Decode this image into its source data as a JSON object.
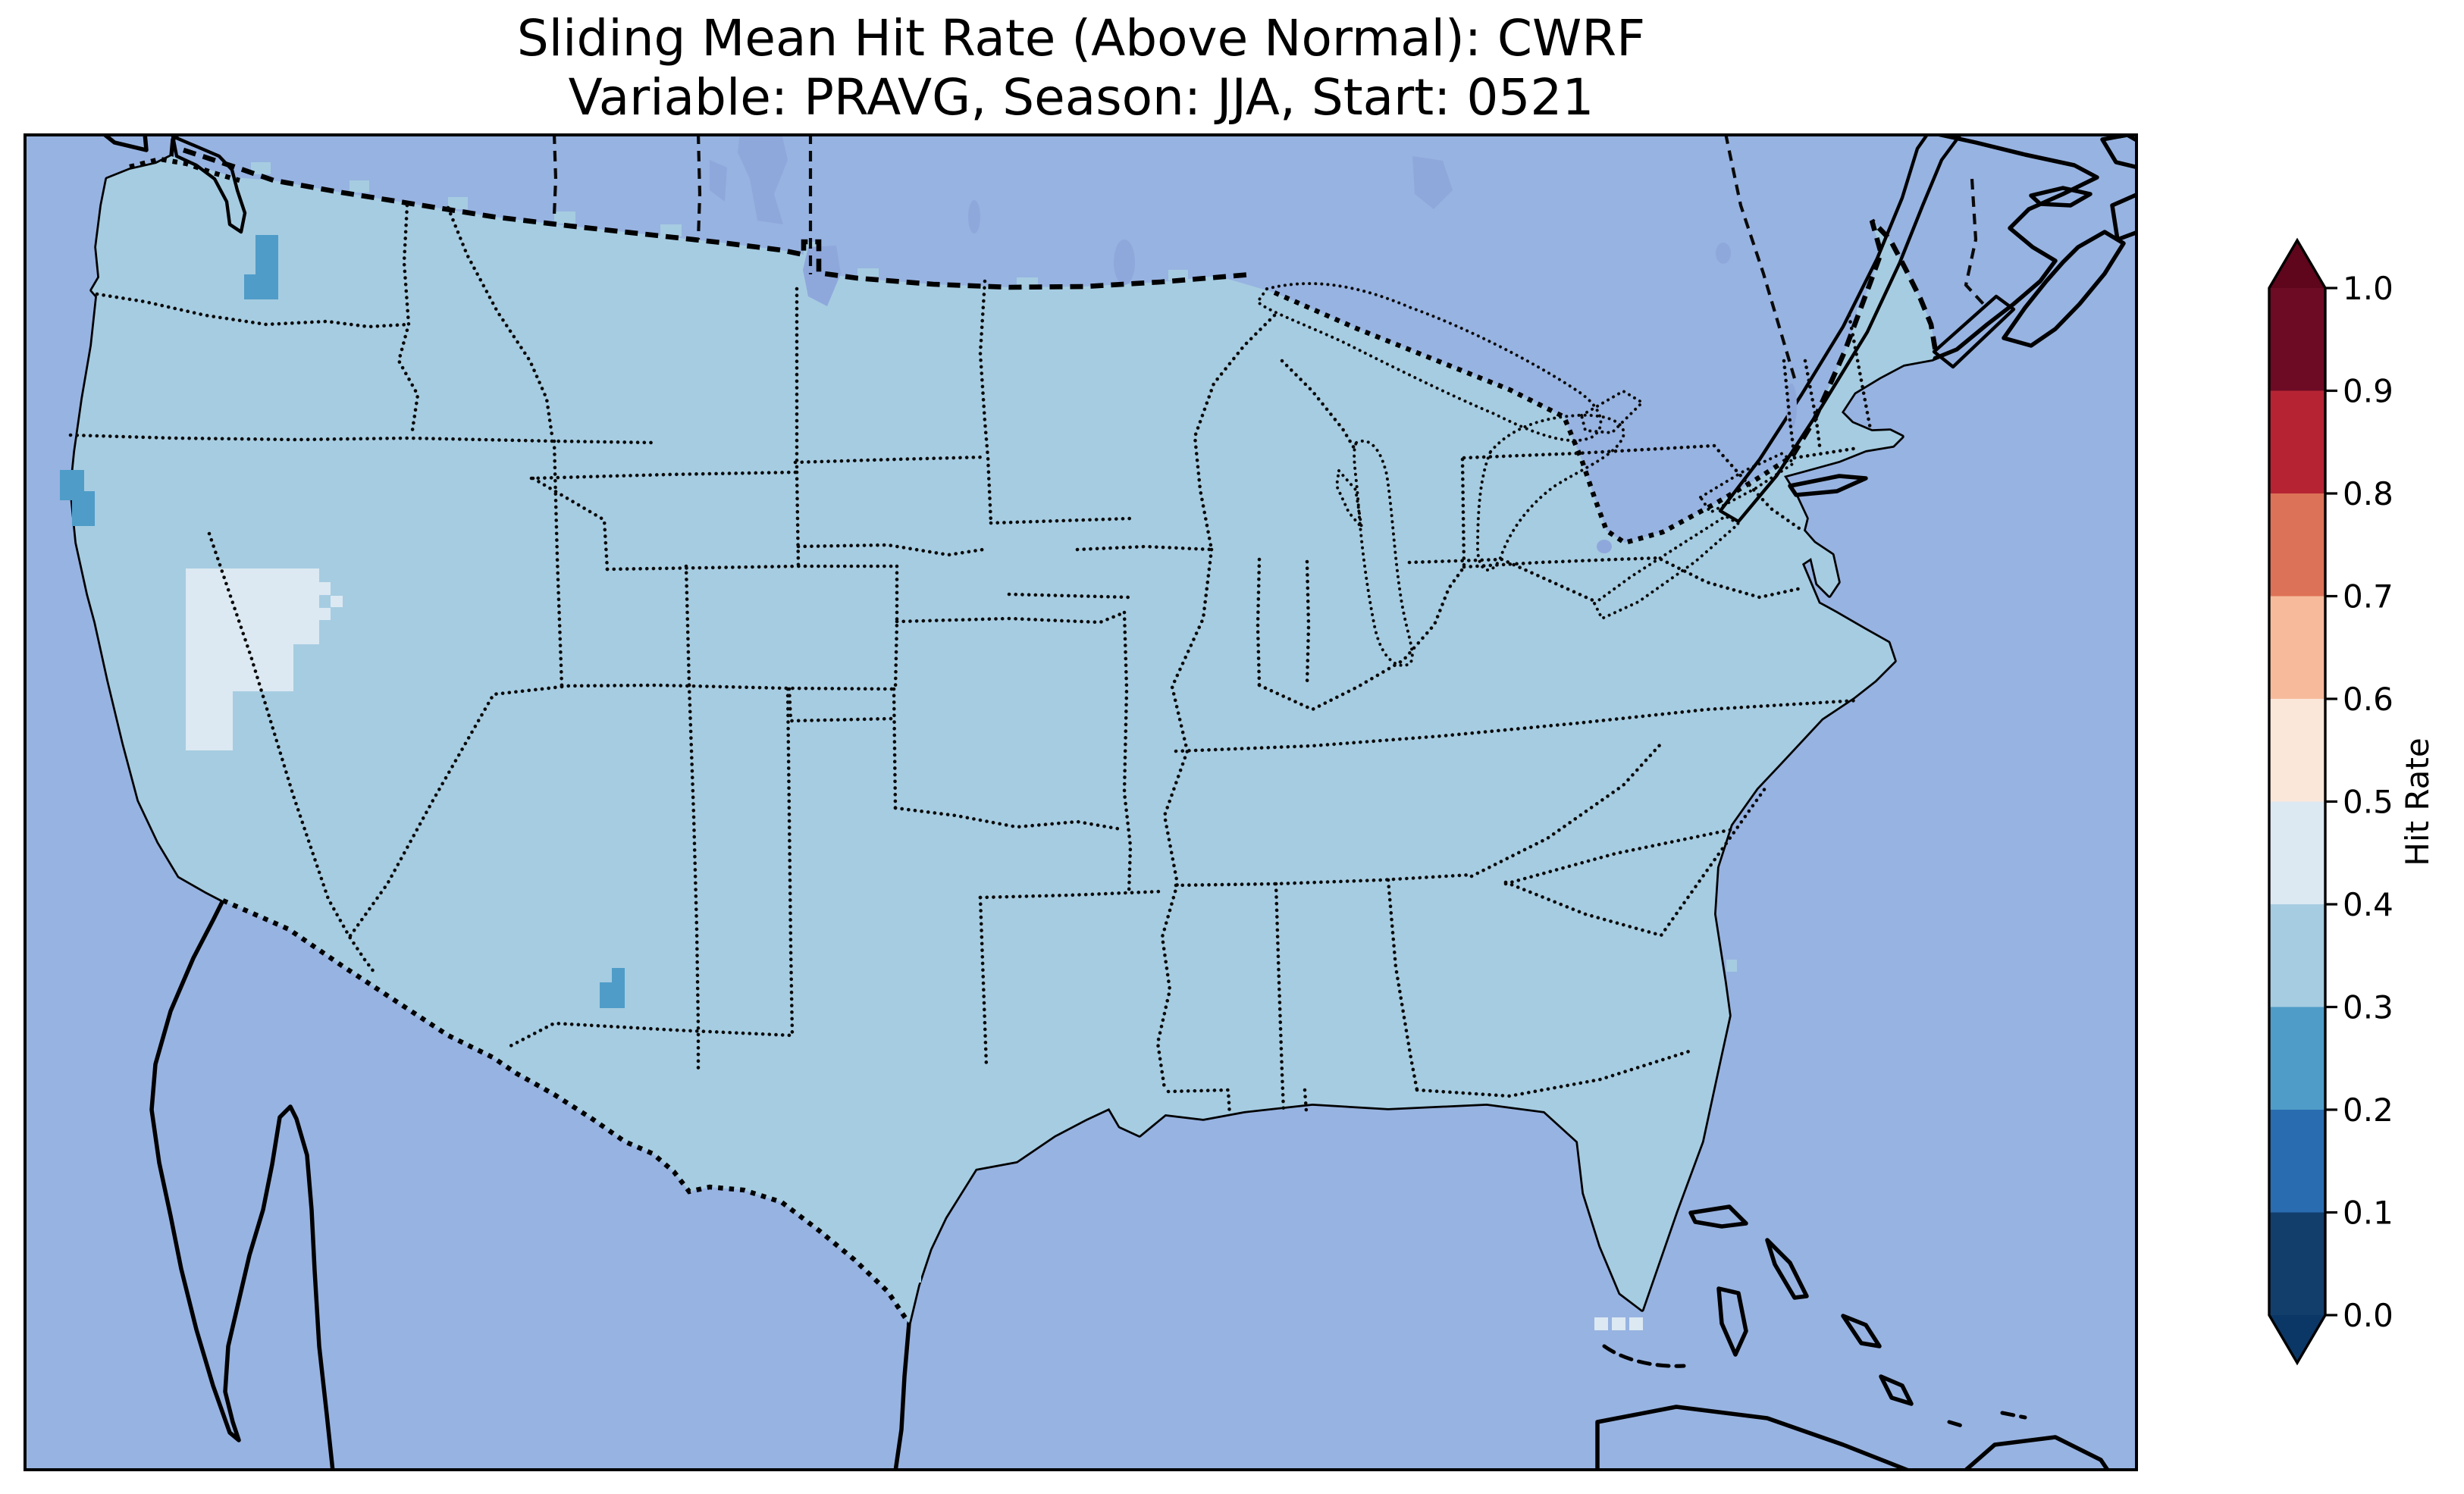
{
  "figure": {
    "background": "#ffffff"
  },
  "title": {
    "line1": "Sliding Mean Hit Rate (Above Normal): CWRF",
    "line2": "Variable: PRAVG, Season: JJA, Start: 0521"
  },
  "colorbar": {
    "label": "Hit Rate",
    "tick_labels": [
      "1.0",
      "0.9",
      "0.8",
      "0.7",
      "0.6",
      "0.5",
      "0.4",
      "0.3",
      "0.2",
      "0.1",
      "0.0"
    ],
    "bins_top_to_bottom": [
      {
        "range": "0.9–1.0",
        "color": "#6d0b24"
      },
      {
        "range": "0.8–0.9",
        "color": "#b62433"
      },
      {
        "range": "0.7–0.8",
        "color": "#dc7257"
      },
      {
        "range": "0.6–0.7",
        "color": "#f7bb9b"
      },
      {
        "range": "0.5–0.6",
        "color": "#fbe7da"
      },
      {
        "range": "0.4–0.5",
        "color": "#dce9f2"
      },
      {
        "range": "0.3–0.4",
        "color": "#a6cce1"
      },
      {
        "range": "0.2–0.3",
        "color": "#4f9cc8"
      },
      {
        "range": "0.1–0.2",
        "color": "#2a6cb0"
      },
      {
        "range": "0.0–0.1",
        "color": "#123e6b"
      }
    ],
    "extend_over_color": "#5f051c",
    "extend_under_color": "#0b3766",
    "outline_color": "#000000"
  },
  "map": {
    "ocean_color": "#97b3e1",
    "foreign_land_color": "#f0eddc",
    "lake_color": "#8fa8dc",
    "us_fill_color": "#a6cce1",
    "us_fill_bin": "0.3–0.4",
    "coastline_color": "#000000"
  },
  "chart_data": {
    "type": "heatmap",
    "title": "Sliding Mean Hit Rate (Above Normal): CWRF",
    "subtitle": "Variable: PRAVG, Season: JJA, Start: 0521",
    "model": "CWRF",
    "variable": "PRAVG",
    "season": "JJA",
    "start_date": "0521",
    "category": "Above Normal",
    "colorbar_label": "Hit Rate",
    "levels": [
      0.0,
      0.1,
      0.2,
      0.3,
      0.4,
      0.5,
      0.6,
      0.7,
      0.8,
      0.9,
      1.0
    ],
    "extend": "both",
    "colormap": "RdBu_r (discrete)",
    "legend_position": "right",
    "region": "Contiguous United States (CONUS)",
    "base_field_value_bin": "0.3–0.4",
    "anomalous_regions": [
      {
        "name": "central-washington",
        "value_bin": "0.2–0.3",
        "color": "#4f9cc8",
        "rects": [
          [
            306,
            134,
            30,
            52
          ],
          [
            291,
            186,
            45,
            33
          ]
        ]
      },
      {
        "name": "northern-california-coast",
        "value_bin": "0.2–0.3",
        "color": "#4f9cc8",
        "rects": [
          [
            48,
            444,
            32,
            40
          ],
          [
            64,
            472,
            30,
            46
          ]
        ]
      },
      {
        "name": "western-nevada",
        "value_bin": "0.4–0.5",
        "color": "#dce9f2",
        "rects": [
          [
            214,
            574,
            176,
            100
          ],
          [
            230,
            674,
            126,
            62
          ],
          [
            214,
            674,
            62,
            140
          ],
          [
            388,
            592,
            17,
            17
          ],
          [
            405,
            610,
            16,
            15
          ],
          [
            388,
            626,
            17,
            16
          ]
        ]
      },
      {
        "name": "west-central-new-mexico",
        "value_bin": "0.2–0.3",
        "color": "#4f9cc8",
        "rects": [
          [
            776,
            1101,
            17,
            53
          ],
          [
            760,
            1120,
            16,
            34
          ]
        ]
      },
      {
        "name": "south-florida-cells",
        "value_bin": "0.4–0.5",
        "color": "#dce9f2",
        "rects": [
          [
            2072,
            1562,
            18,
            17
          ],
          [
            2095,
            1562,
            18,
            17
          ],
          [
            2118,
            1562,
            18,
            17
          ]
        ]
      }
    ]
  }
}
